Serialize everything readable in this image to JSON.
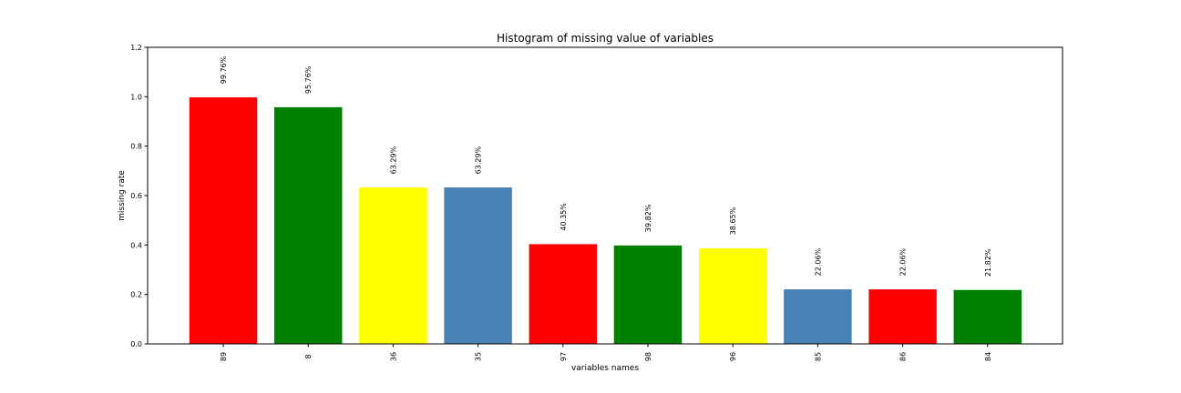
{
  "chart_data": {
    "type": "bar",
    "title": "Histogram of missing value of variables",
    "xlabel": "variables names",
    "ylabel": "missing rate",
    "ylim": [
      0,
      1.2
    ],
    "yticks": [
      0.0,
      0.2,
      0.4,
      0.6,
      0.8,
      1.0,
      1.2
    ],
    "ytick_labels": [
      "0.0",
      "0.2",
      "0.4",
      "0.6",
      "0.8",
      "1.0",
      "1.2"
    ],
    "categories": [
      "89",
      "8",
      "36",
      "35",
      "97",
      "98",
      "96",
      "85",
      "86",
      "84"
    ],
    "values": [
      0.9976,
      0.9576,
      0.6329,
      0.6329,
      0.4035,
      0.3982,
      0.3865,
      0.2206,
      0.2206,
      0.2182
    ],
    "data_labels": [
      "99.76%",
      "95.76%",
      "63.29%",
      "63.29%",
      "40.35%",
      "39.82%",
      "38.65%",
      "22.06%",
      "22.06%",
      "21.82%"
    ],
    "colors": [
      "#ff0000",
      "#008000",
      "#ffff00",
      "#4682b4",
      "#ff0000",
      "#008000",
      "#ffff00",
      "#4682b4",
      "#ff0000",
      "#008000"
    ],
    "grid": false,
    "legend": "none"
  }
}
